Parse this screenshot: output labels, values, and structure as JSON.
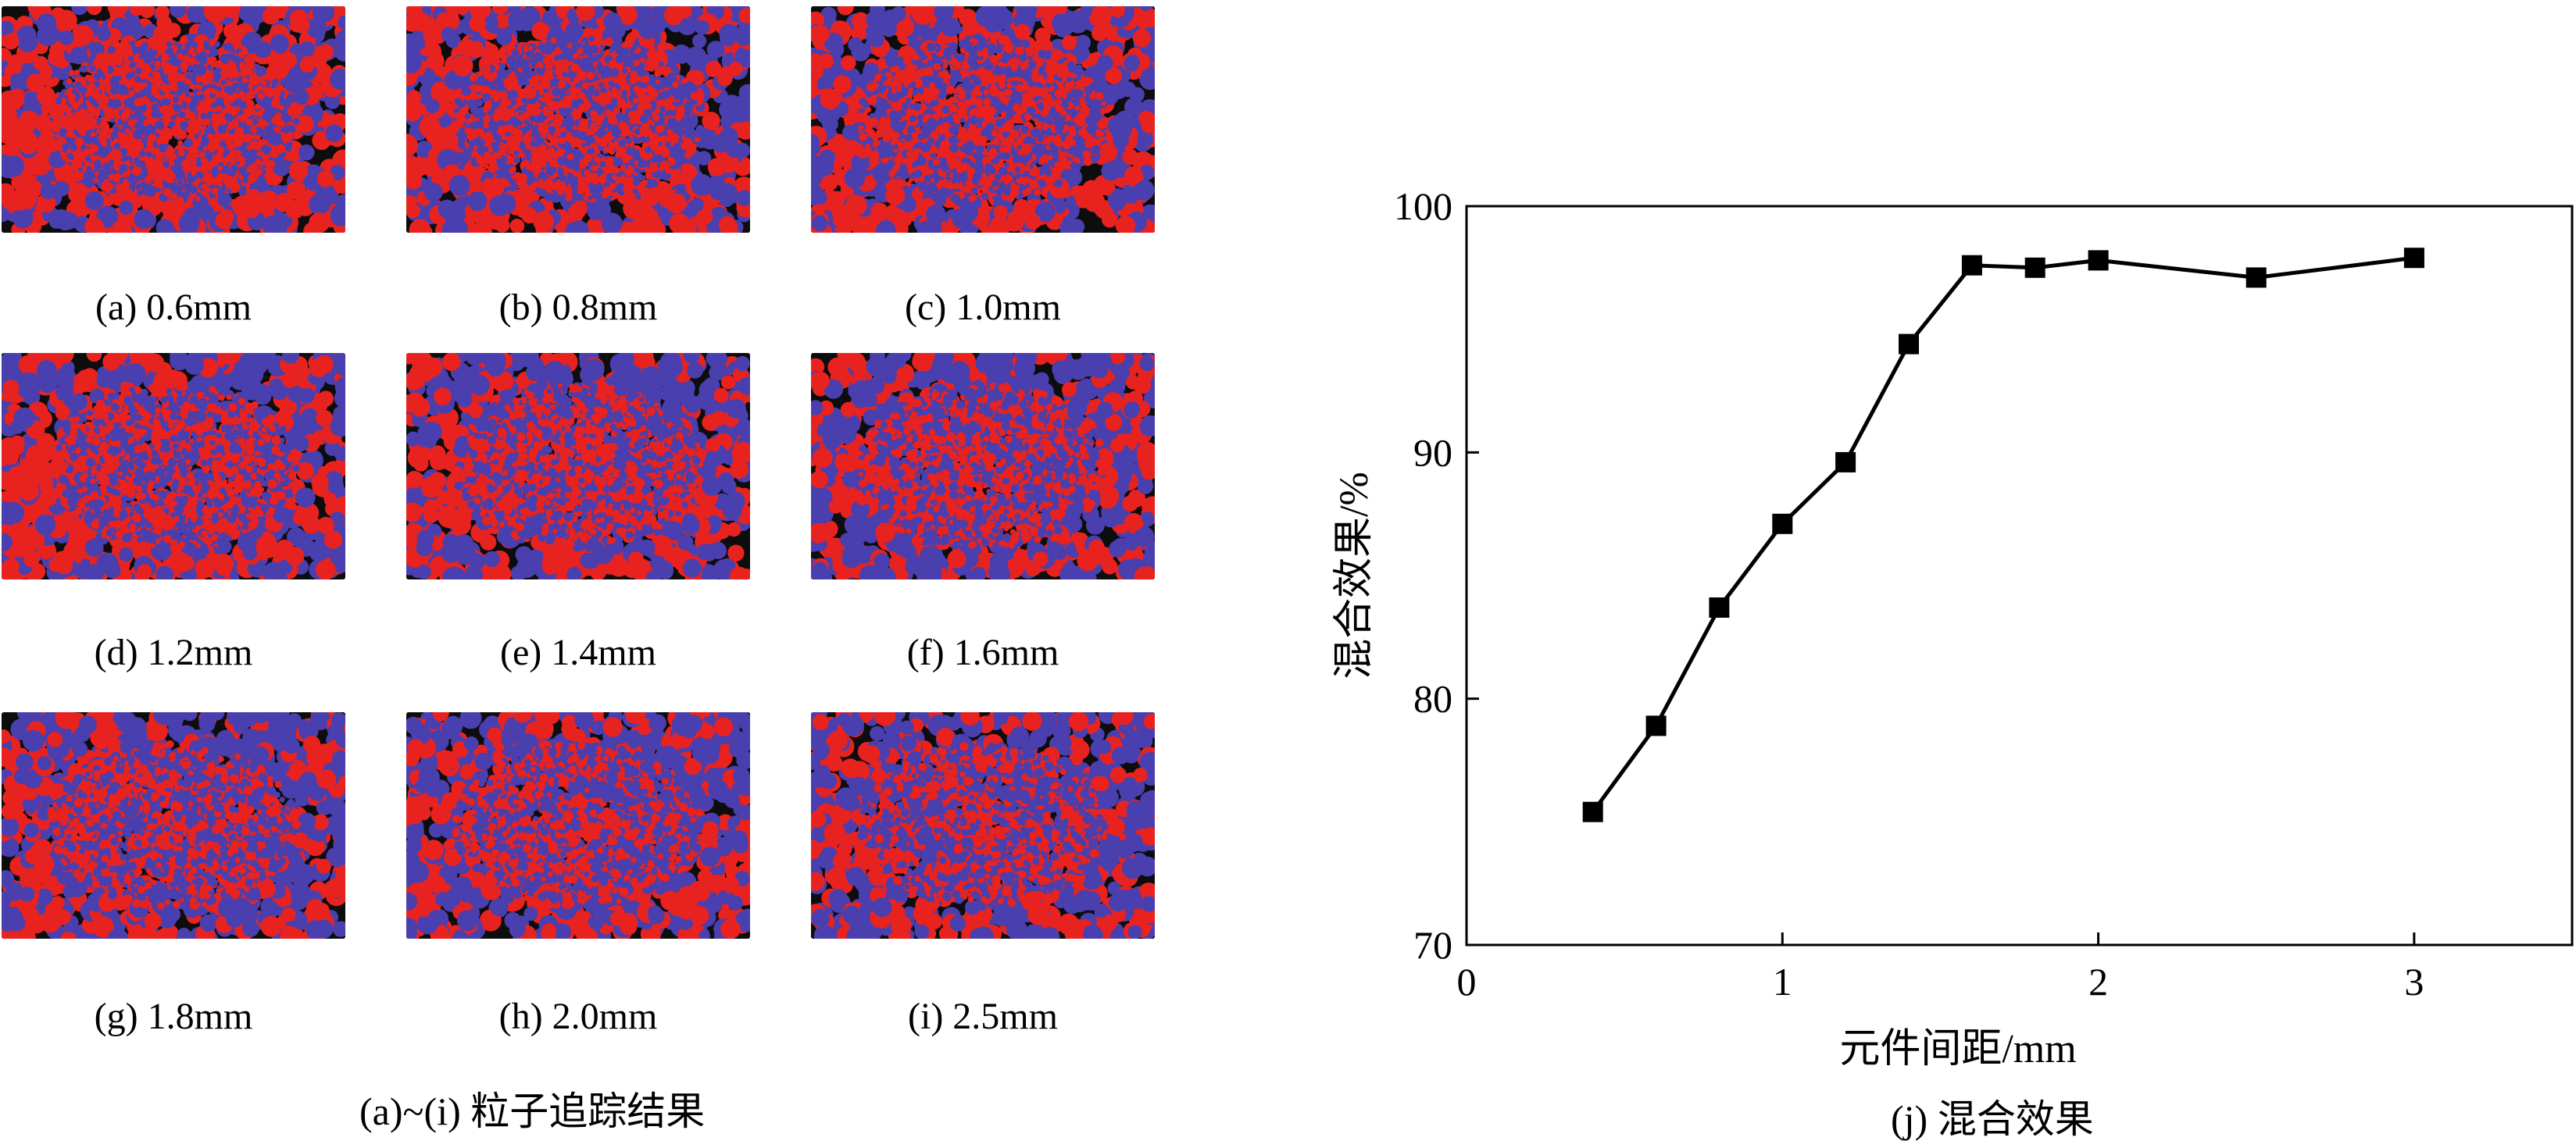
{
  "panels": [
    {
      "label": "(a) 0.6mm"
    },
    {
      "label": "(b) 0.8mm"
    },
    {
      "label": "(c) 1.0mm"
    },
    {
      "label": "(d) 1.2mm"
    },
    {
      "label": "(e) 1.4mm"
    },
    {
      "label": "(f) 1.6mm"
    },
    {
      "label": "(g) 1.8mm"
    },
    {
      "label": "(h) 2.0mm"
    },
    {
      "label": "(i) 2.5mm"
    }
  ],
  "panels_caption": "(a)~(i) 粒子追踪结果",
  "particle_colors": {
    "red": "#e8231f",
    "blue": "#4a3fae",
    "background": "#0d0d0d"
  },
  "chart_data": {
    "type": "line",
    "title": "",
    "caption": "(j) 混合效果",
    "xlabel": "元件间距/mm",
    "ylabel": "混合效果/%",
    "xlim": [
      0,
      3.5
    ],
    "ylim": [
      70,
      100
    ],
    "xticks": [
      0,
      1,
      2,
      3
    ],
    "yticks": [
      70,
      80,
      90,
      100
    ],
    "grid": false,
    "series": [
      {
        "name": "混合效果",
        "marker": "square",
        "color": "#000000",
        "x": [
          0.4,
          0.6,
          0.8,
          1.0,
          1.2,
          1.4,
          1.6,
          1.8,
          2.0,
          2.5,
          3.0
        ],
        "y": [
          75.4,
          78.9,
          83.7,
          87.1,
          89.6,
          94.4,
          97.6,
          97.5,
          97.8,
          97.1,
          97.9
        ]
      }
    ]
  }
}
